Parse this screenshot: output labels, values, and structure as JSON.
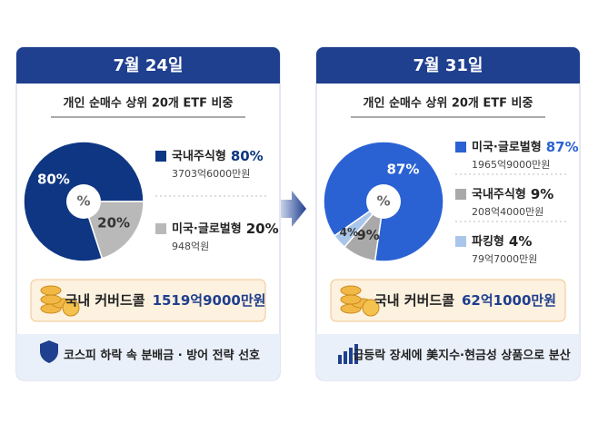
{
  "panels": [
    {
      "date": "7월 24일",
      "subtitle": "개인 순매수 상위 20개 ETF 비중",
      "center_label": "%",
      "covered_call_label": "국내 커버드콜",
      "covered_call_amount": "1519억9000만원",
      "footer": "코스피 하락 속 분배금 · 방어 전략 선호"
    },
    {
      "date": "7월 31일",
      "subtitle": "개인 순매수 상위 20개 ETF 비중",
      "center_label": "%",
      "covered_call_label": "국내 커버드콜",
      "covered_call_amount": "62억1000만원",
      "footer": "급등락 장세에 美지수·현금성 상품으로 분산"
    }
  ],
  "chart_data": [
    {
      "type": "pie",
      "categories": [
        "국내주식형",
        "미국·글로벌형"
      ],
      "values": [
        80,
        20
      ],
      "value_labels": [
        "80%",
        "20%"
      ],
      "amounts": [
        "3703억6000만원",
        "948억원"
      ],
      "colors": [
        "#0e3682",
        "#b9b9b9"
      ]
    },
    {
      "type": "pie",
      "categories": [
        "미국·글로벌형",
        "국내주식형",
        "파킹형"
      ],
      "values": [
        87,
        9,
        4
      ],
      "value_labels": [
        "87%",
        "9%",
        "4%"
      ],
      "amounts": [
        "1965억9000만원",
        "208억4000만원",
        "79억7000만원"
      ],
      "colors": [
        "#2a62d4",
        "#a9a9a9",
        "#a9c6ea"
      ]
    }
  ]
}
